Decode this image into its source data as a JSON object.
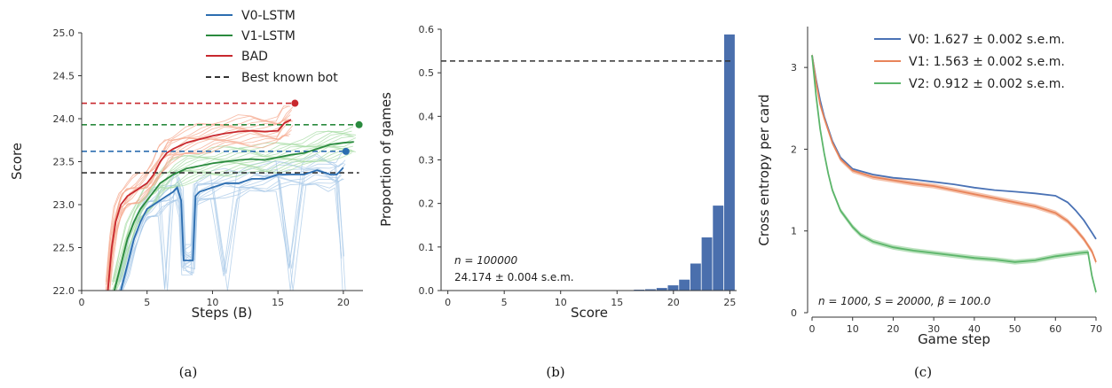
{
  "colors": {
    "blue": "#2c6db0",
    "blue_light": "#a9c9e8",
    "green": "#2a8a3e",
    "green_light": "#a8dca5",
    "red": "#c8282e",
    "red_light": "#f6a98f",
    "black": "#333333",
    "bar": "#4a6fad",
    "c_v0": "#4a72b5",
    "c_v1": "#e8845a",
    "c_v2": "#5cb56a",
    "c_v1_fill": "#f2b59a",
    "c_v2_fill": "#a7d9ab"
  },
  "chart_data": [
    {
      "type": "line",
      "caption": "(a)",
      "xlabel": "Steps (B)",
      "ylabel": "Score",
      "xlim": [
        0,
        21.5
      ],
      "ylim": [
        22.0,
        25.0
      ],
      "xticks": [
        "0",
        "5",
        "10",
        "15",
        "20"
      ],
      "yticks": [
        "22.0",
        "22.5",
        "23.0",
        "23.5",
        "24.0",
        "24.5",
        "25.0"
      ],
      "legend": {
        "placement": "top-center",
        "entries": [
          "V0-LSTM",
          "V1-LSTM",
          "BAD",
          "Best known bot"
        ]
      },
      "series": [
        {
          "name": "V0-LSTM",
          "color_key": "blue",
          "x": [
            3.0,
            3.5,
            4.0,
            4.5,
            5.0,
            5.5,
            6.0,
            6.5,
            7.0,
            7.3,
            7.6,
            7.8,
            8.0,
            8.5,
            8.7,
            9.0,
            10.0,
            11.0,
            12.0,
            13.0,
            14.0,
            15.0,
            16.0,
            17.0,
            18.0,
            19.0,
            19.5,
            20.0
          ],
          "y": [
            22.0,
            22.3,
            22.6,
            22.8,
            22.95,
            23.0,
            23.05,
            23.1,
            23.15,
            23.2,
            23.05,
            22.35,
            22.35,
            22.35,
            23.1,
            23.15,
            23.2,
            23.25,
            23.25,
            23.3,
            23.3,
            23.35,
            23.35,
            23.35,
            23.4,
            23.35,
            23.35,
            23.43
          ]
        },
        {
          "name": "V1-LSTM",
          "color_key": "green",
          "x": [
            2.5,
            3.0,
            3.5,
            4.0,
            4.5,
            5.0,
            5.5,
            6.0,
            6.5,
            7.0,
            8.0,
            9.0,
            10.0,
            11.0,
            12.0,
            13.0,
            14.0,
            15.0,
            16.0,
            17.0,
            18.0,
            19.0,
            20.0,
            20.8
          ],
          "y": [
            22.0,
            22.3,
            22.6,
            22.8,
            22.95,
            23.05,
            23.15,
            23.25,
            23.3,
            23.35,
            23.42,
            23.45,
            23.48,
            23.5,
            23.52,
            23.53,
            23.52,
            23.55,
            23.58,
            23.6,
            23.65,
            23.7,
            23.72,
            23.73
          ]
        },
        {
          "name": "BAD",
          "color_key": "red",
          "x": [
            2.0,
            2.3,
            2.6,
            3.0,
            3.5,
            4.0,
            4.5,
            5.0,
            5.5,
            6.0,
            6.5,
            7.0,
            8.0,
            9.0,
            10.0,
            11.0,
            12.0,
            13.0,
            14.0,
            15.0,
            15.5,
            16.0
          ],
          "y": [
            22.0,
            22.5,
            22.8,
            23.0,
            23.1,
            23.15,
            23.2,
            23.25,
            23.35,
            23.5,
            23.6,
            23.65,
            23.72,
            23.76,
            23.8,
            23.83,
            23.85,
            23.86,
            23.85,
            23.86,
            23.95,
            23.99
          ]
        }
      ],
      "hlines": [
        {
          "label": "BAD max",
          "y": 24.18,
          "x_end": 16.3,
          "color_key": "red",
          "dot": true
        },
        {
          "label": "V1-LSTM max",
          "y": 23.93,
          "x_end": 21.2,
          "color_key": "green",
          "dot": true
        },
        {
          "label": "V0-LSTM max",
          "y": 23.62,
          "x_end": 20.2,
          "color_key": "blue",
          "dot": true
        },
        {
          "label": "Best known bot",
          "y": 23.37,
          "x_end": 21.2,
          "color_key": "black",
          "dot": false
        }
      ]
    },
    {
      "type": "bar",
      "caption": "(b)",
      "xlabel": "Score",
      "ylabel": "Proportion of games",
      "xlim": [
        -0.6,
        25.6
      ],
      "ylim": [
        0,
        0.6
      ],
      "xticks": [
        "0",
        "5",
        "10",
        "15",
        "20",
        "25"
      ],
      "yticks": [
        "0.0",
        "0.1",
        "0.2",
        "0.3",
        "0.4",
        "0.5",
        "0.6"
      ],
      "categories": [
        17,
        18,
        19,
        20,
        21,
        22,
        23,
        24,
        25
      ],
      "values": [
        0.002,
        0.003,
        0.006,
        0.012,
        0.025,
        0.062,
        0.122,
        0.195,
        0.588
      ],
      "hline": {
        "y": 0.527,
        "label": "Best known bot"
      },
      "annotations": [
        "n = 100000",
        "24.174 ± 0.004 s.e.m."
      ]
    },
    {
      "type": "line",
      "caption": "(c)",
      "xlabel": "Game step",
      "ylabel": "Cross entropy per card",
      "xlim": [
        0,
        70
      ],
      "ylim": [
        0,
        3.5
      ],
      "xticks": [
        "0",
        "10",
        "20",
        "30",
        "40",
        "50",
        "60",
        "70"
      ],
      "yticks": [
        "0",
        "1",
        "2",
        "3"
      ],
      "legend": {
        "placement": "top-right",
        "entries": [
          "V0: 1.627 ± 0.002 s.e.m.",
          "V1: 1.563 ± 0.002 s.e.m.",
          "V2: 0.912 ± 0.002 s.e.m."
        ]
      },
      "annotation": "n = 1000, S = 20000, β = 100.0",
      "series": [
        {
          "name": "V0: 1.627 ± 0.002 s.e.m.",
          "color_key": "c_v0",
          "x": [
            0,
            1,
            2,
            3,
            5,
            7,
            10,
            15,
            20,
            25,
            30,
            35,
            40,
            45,
            50,
            55,
            60,
            63,
            65,
            67,
            69,
            70
          ],
          "y": [
            3.15,
            2.85,
            2.6,
            2.4,
            2.1,
            1.9,
            1.76,
            1.69,
            1.65,
            1.63,
            1.6,
            1.57,
            1.53,
            1.5,
            1.48,
            1.46,
            1.43,
            1.35,
            1.25,
            1.13,
            0.98,
            0.9
          ]
        },
        {
          "name": "V1: 1.563 ± 0.002 s.e.m.",
          "color_key": "c_v1",
          "x": [
            0,
            1,
            2,
            3,
            5,
            7,
            10,
            15,
            20,
            25,
            30,
            35,
            40,
            45,
            50,
            55,
            60,
            63,
            65,
            67,
            69,
            70
          ],
          "y": [
            3.15,
            2.82,
            2.55,
            2.38,
            2.08,
            1.88,
            1.74,
            1.66,
            1.62,
            1.58,
            1.55,
            1.5,
            1.45,
            1.4,
            1.35,
            1.3,
            1.22,
            1.12,
            1.02,
            0.9,
            0.75,
            0.62
          ]
        },
        {
          "name": "V2: 0.912 ± 0.002 s.e.m.",
          "color_key": "c_v2",
          "x": [
            0,
            1,
            2,
            3,
            4,
            5,
            7,
            10,
            12,
            15,
            20,
            25,
            30,
            35,
            40,
            45,
            50,
            55,
            60,
            63,
            66,
            68,
            69,
            70
          ],
          "y": [
            3.15,
            2.65,
            2.25,
            1.95,
            1.7,
            1.5,
            1.25,
            1.05,
            0.95,
            0.87,
            0.8,
            0.76,
            0.73,
            0.7,
            0.67,
            0.65,
            0.62,
            0.64,
            0.69,
            0.71,
            0.73,
            0.74,
            0.45,
            0.25
          ]
        }
      ]
    }
  ]
}
